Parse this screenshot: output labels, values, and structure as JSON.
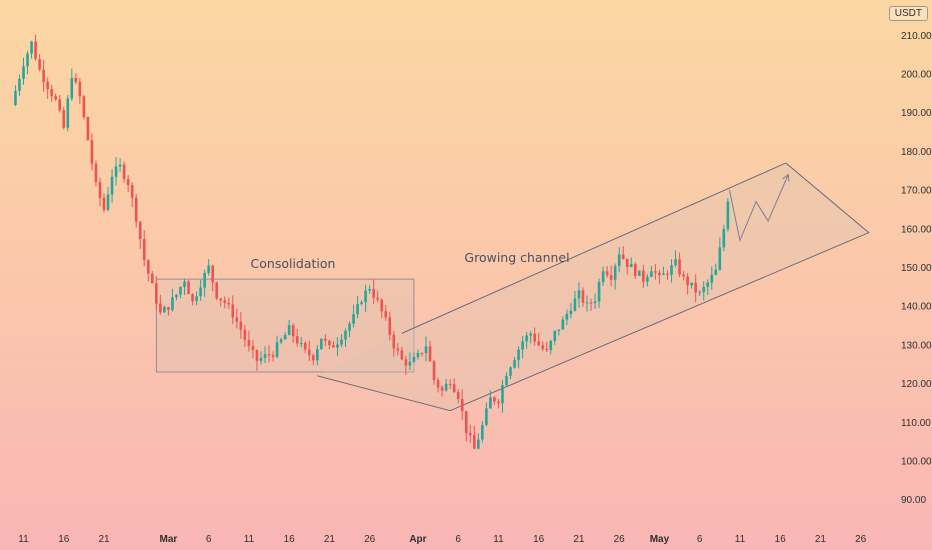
{
  "chart_data": {
    "type": "candlestick",
    "currency": "USDT",
    "ylim": [
      86,
      216
    ],
    "y_ticks": [
      90,
      100,
      110,
      120,
      130,
      140,
      150,
      160,
      170,
      180,
      190,
      200,
      210
    ],
    "y_tick_labels": [
      "90.00",
      "100.00",
      "110.00",
      "120.00",
      "130.00",
      "140.00",
      "150.00",
      "160.00",
      "170.00",
      "180.00",
      "190.00",
      "200.00",
      "210.00"
    ],
    "x_ticks": [
      {
        "day": 0,
        "label": "11",
        "bold": false
      },
      {
        "day": 5,
        "label": "16",
        "bold": false
      },
      {
        "day": 10,
        "label": "21",
        "bold": false
      },
      {
        "day": 18,
        "label": "Mar",
        "bold": true
      },
      {
        "day": 23,
        "label": "6",
        "bold": false
      },
      {
        "day": 28,
        "label": "11",
        "bold": false
      },
      {
        "day": 33,
        "label": "16",
        "bold": false
      },
      {
        "day": 38,
        "label": "21",
        "bold": false
      },
      {
        "day": 43,
        "label": "26",
        "bold": false
      },
      {
        "day": 49,
        "label": "Apr",
        "bold": true
      },
      {
        "day": 54,
        "label": "6",
        "bold": false
      },
      {
        "day": 59,
        "label": "11",
        "bold": false
      },
      {
        "day": 64,
        "label": "16",
        "bold": false
      },
      {
        "day": 69,
        "label": "21",
        "bold": false
      },
      {
        "day": 74,
        "label": "26",
        "bold": false
      },
      {
        "day": 79,
        "label": "May",
        "bold": true
      },
      {
        "day": 84,
        "label": "6",
        "bold": false
      },
      {
        "day": 89,
        "label": "11",
        "bold": false
      },
      {
        "day": 94,
        "label": "16",
        "bold": false
      },
      {
        "day": 99,
        "label": "21",
        "bold": false
      },
      {
        "day": 104,
        "label": "26",
        "bold": false
      }
    ],
    "price_path": [
      [
        -1.5,
        192
      ],
      [
        0,
        203
      ],
      [
        1,
        208
      ],
      [
        2,
        201
      ],
      [
        3,
        197
      ],
      [
        4,
        193
      ],
      [
        5,
        186
      ],
      [
        6,
        200
      ],
      [
        7,
        194
      ],
      [
        8,
        183
      ],
      [
        9,
        171
      ],
      [
        10,
        165
      ],
      [
        11,
        174
      ],
      [
        12,
        176
      ],
      [
        13,
        172
      ],
      [
        14,
        163
      ],
      [
        15,
        152
      ],
      [
        16,
        145
      ],
      [
        17,
        138
      ],
      [
        18,
        140
      ],
      [
        19,
        143
      ],
      [
        20,
        147
      ],
      [
        21,
        141
      ],
      [
        22,
        146
      ],
      [
        23,
        150
      ],
      [
        24,
        143
      ],
      [
        25,
        141
      ],
      [
        26,
        138
      ],
      [
        27,
        134
      ],
      [
        28,
        129
      ],
      [
        29,
        126
      ],
      [
        30,
        127
      ],
      [
        31,
        128
      ],
      [
        32,
        131
      ],
      [
        33,
        134
      ],
      [
        34,
        131
      ],
      [
        35,
        128
      ],
      [
        36,
        127
      ],
      [
        37,
        132
      ],
      [
        38,
        129
      ],
      [
        39,
        131
      ],
      [
        40,
        134
      ],
      [
        41,
        137
      ],
      [
        42,
        142
      ],
      [
        43,
        145
      ],
      [
        44,
        141
      ],
      [
        45,
        136
      ],
      [
        46,
        130
      ],
      [
        47,
        126
      ],
      [
        48,
        125
      ],
      [
        49,
        127
      ],
      [
        50,
        130
      ],
      [
        51,
        121
      ],
      [
        52,
        118
      ],
      [
        53,
        121
      ],
      [
        54,
        117
      ],
      [
        55,
        108
      ],
      [
        56,
        103
      ],
      [
        57,
        109
      ],
      [
        58,
        116
      ],
      [
        59,
        116
      ],
      [
        60,
        123
      ],
      [
        61,
        127
      ],
      [
        62,
        131
      ],
      [
        63,
        133
      ],
      [
        64,
        130
      ],
      [
        65,
        128
      ],
      [
        66,
        133
      ],
      [
        67,
        136
      ],
      [
        68,
        140
      ],
      [
        69,
        143
      ],
      [
        70,
        140
      ],
      [
        71,
        142
      ],
      [
        72,
        150
      ],
      [
        73,
        148
      ],
      [
        74,
        154
      ],
      [
        75,
        151
      ],
      [
        76,
        149
      ],
      [
        77,
        147
      ],
      [
        78,
        150
      ],
      [
        79,
        147
      ],
      [
        80,
        149
      ],
      [
        81,
        151
      ],
      [
        82,
        147
      ],
      [
        83,
        145
      ],
      [
        84,
        143
      ],
      [
        85,
        146
      ],
      [
        86,
        149
      ],
      [
        87,
        160
      ],
      [
        87.7,
        171
      ]
    ],
    "annotations": {
      "consolidation_label": "Consolidation",
      "consolidation_box": {
        "day_start": 16.5,
        "day_end": 48.5,
        "price_low": 123,
        "price_high": 147
      },
      "channel_label": "Growing channel",
      "channel_upper": [
        [
          47,
          133
        ],
        [
          94.7,
          177
        ]
      ],
      "channel_lower": [
        [
          36.5,
          122
        ],
        [
          53,
          113
        ],
        [
          105,
          159
        ]
      ],
      "projection_path": [
        [
          87.7,
          170
        ],
        [
          89,
          157
        ],
        [
          91,
          167
        ],
        [
          92.5,
          162
        ],
        [
          95,
          174
        ]
      ]
    }
  }
}
